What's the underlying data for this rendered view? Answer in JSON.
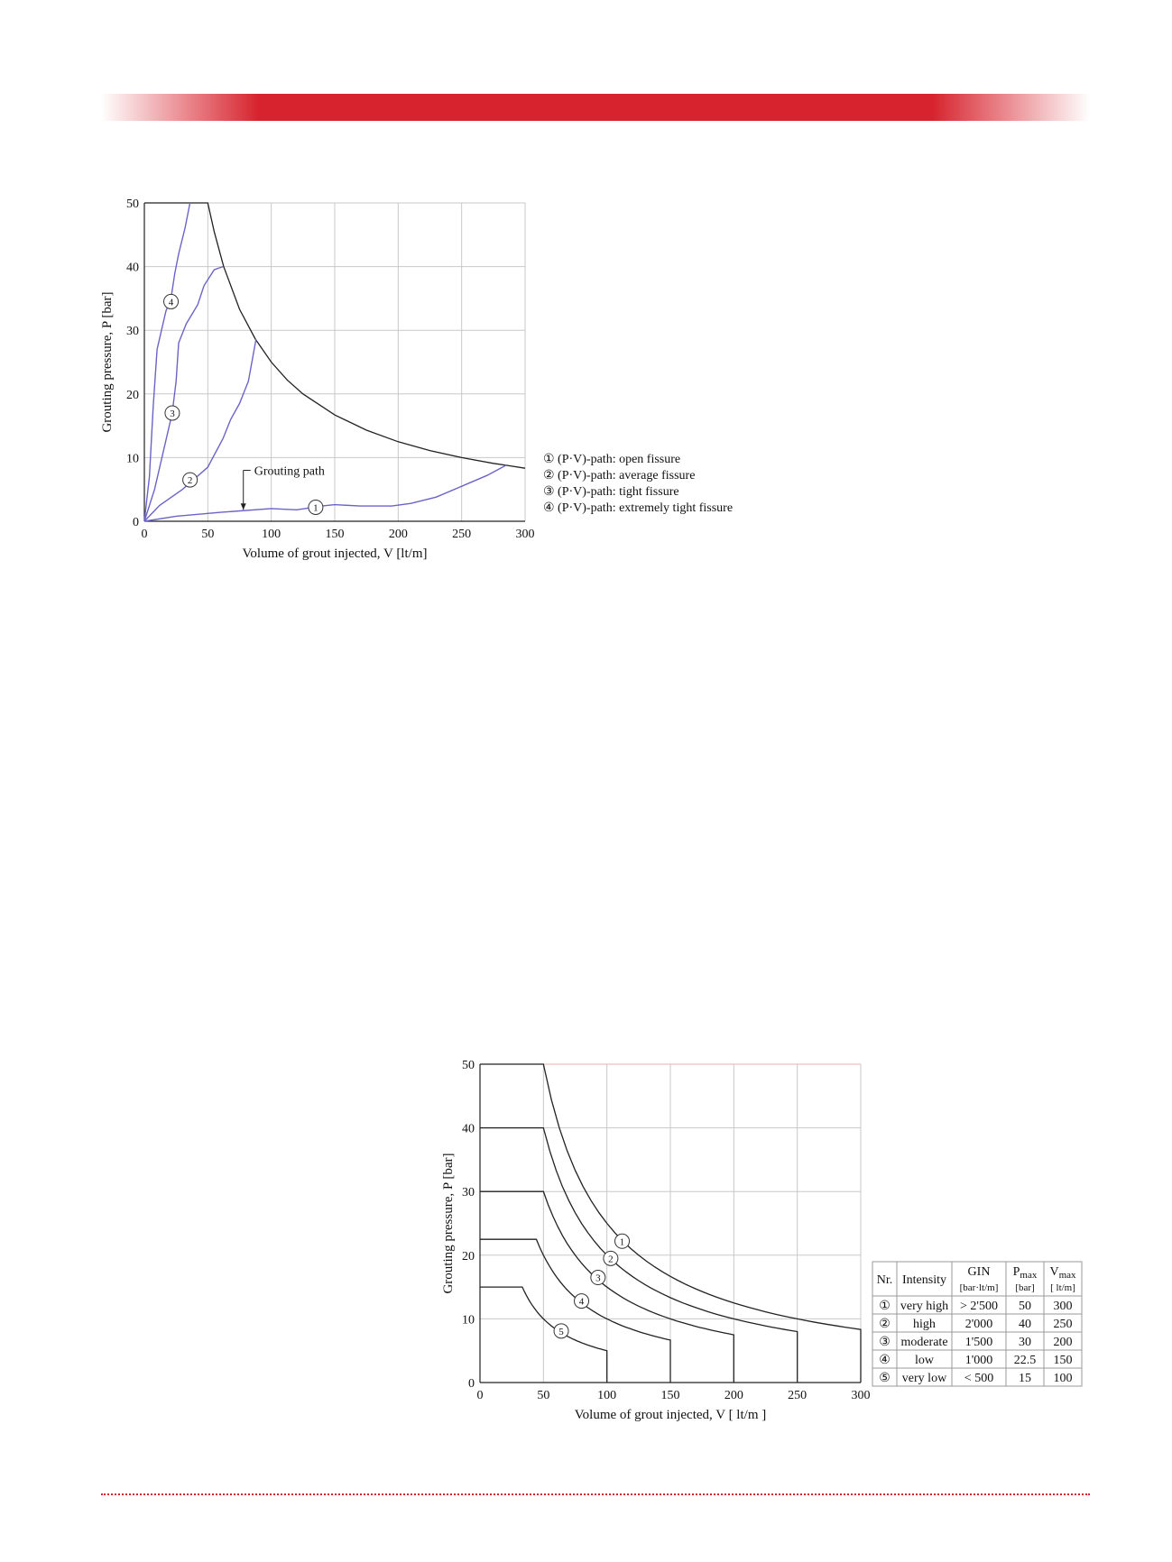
{
  "colors": {
    "accent_bar": "#d7232d",
    "path_curve": "#6b64c8",
    "limit_curve": "#222222",
    "grid": "#c8c8c8",
    "table_grid": "#9a9a9a",
    "top_grid": "#e8b0b0"
  },
  "chart_data": [
    {
      "type": "line",
      "xlabel": "Volume of grout injected, V [lt/m]",
      "ylabel": "Grouting pressure, P [bar]",
      "xlim": [
        0,
        300
      ],
      "ylim": [
        0,
        50
      ],
      "xticks": [
        "0",
        "50",
        "100",
        "150",
        "200",
        "250",
        "300"
      ],
      "yticks": [
        "0",
        "10",
        "20",
        "30",
        "40",
        "50"
      ],
      "grid": true,
      "annotation": "Grouting path",
      "limit_curve": {
        "points": [
          [
            0,
            50
          ],
          [
            50,
            50
          ],
          [
            55,
            45.5
          ],
          [
            62.5,
            40
          ],
          [
            75,
            33.3
          ],
          [
            87.5,
            28.6
          ],
          [
            100,
            25
          ],
          [
            112.5,
            22.2
          ],
          [
            125,
            20
          ],
          [
            150,
            16.7
          ],
          [
            175,
            14.3
          ],
          [
            200,
            12.5
          ],
          [
            225,
            11.1
          ],
          [
            250,
            10
          ],
          [
            275,
            9.1
          ],
          [
            285,
            8.8
          ],
          [
            300,
            8.33
          ]
        ]
      },
      "series": [
        {
          "name": "(P·V)-path: open fissure",
          "marker": "①",
          "marker_at": [
            135,
            2.2
          ],
          "points": [
            [
              0,
              0
            ],
            [
              25,
              0.8
            ],
            [
              60,
              1.4
            ],
            [
              100,
              2.0
            ],
            [
              120,
              1.8
            ],
            [
              140,
              2.4
            ],
            [
              150,
              2.6
            ],
            [
              170,
              2.4
            ],
            [
              195,
              2.4
            ],
            [
              210,
              2.8
            ],
            [
              230,
              3.8
            ],
            [
              250,
              5.5
            ],
            [
              270,
              7.2
            ],
            [
              285,
              8.8
            ]
          ]
        },
        {
          "name": "(P·V)-path: average fissure",
          "marker": "②",
          "marker_at": [
            36,
            6.5
          ],
          "points": [
            [
              0,
              0
            ],
            [
              12,
              2.5
            ],
            [
              30,
              5
            ],
            [
              50,
              8.5
            ],
            [
              62,
              13
            ],
            [
              68,
              16
            ],
            [
              75,
              18.5
            ],
            [
              82,
              22
            ],
            [
              88,
              28.6
            ]
          ]
        },
        {
          "name": "(P·V)-path: tight fissure",
          "marker": "③",
          "marker_at": [
            22,
            17
          ],
          "points": [
            [
              0,
              0
            ],
            [
              8,
              5
            ],
            [
              15,
              11
            ],
            [
              22,
              17
            ],
            [
              25,
              22
            ],
            [
              27,
              28
            ],
            [
              33,
              31
            ],
            [
              42,
              34
            ],
            [
              47,
              37
            ],
            [
              55,
              39.5
            ],
            [
              62,
              40
            ]
          ]
        },
        {
          "name": "(P·V)-path: extremely tight fissure",
          "marker": "④",
          "marker_at": [
            21,
            34.5
          ],
          "points": [
            [
              0,
              0
            ],
            [
              4,
              7
            ],
            [
              7,
              18
            ],
            [
              10,
              27
            ],
            [
              17,
              33
            ],
            [
              21,
              35
            ],
            [
              24,
              39
            ],
            [
              27,
              42
            ],
            [
              32,
              46
            ],
            [
              36,
              50
            ]
          ]
        }
      ]
    },
    {
      "type": "line",
      "xlabel": "Volume of grout injected, V [ lt/m ]",
      "ylabel": "Grouting pressure, P [bar]",
      "xlim": [
        0,
        300
      ],
      "ylim": [
        0,
        50
      ],
      "xticks": [
        "0",
        "50",
        "100",
        "150",
        "200",
        "250",
        "300"
      ],
      "yticks": [
        "0",
        "10",
        "20",
        "30",
        "40",
        "50"
      ],
      "grid": true,
      "series": [
        {
          "marker": "①",
          "pmax": 50,
          "vmax": 300,
          "gin": 2500,
          "marker_at": [
            112,
            22.2
          ]
        },
        {
          "marker": "②",
          "pmax": 40,
          "vmax": 250,
          "gin": 2000,
          "marker_at": [
            103,
            19.5
          ]
        },
        {
          "marker": "③",
          "pmax": 30,
          "vmax": 200,
          "gin": 1500,
          "marker_at": [
            93,
            16.5
          ]
        },
        {
          "marker": "④",
          "pmax": 22.5,
          "vmax": 150,
          "gin": 1000,
          "marker_at": [
            80,
            12.8
          ]
        },
        {
          "marker": "⑤",
          "pmax": 15,
          "vmax": 100,
          "gin": 500,
          "marker_at": [
            64,
            8.1
          ]
        }
      ],
      "table": {
        "headers": [
          "Nr.",
          "Intensity",
          "GIN",
          "P",
          "V"
        ],
        "header_units": [
          "",
          "",
          "[bar·lt/m]",
          "[bar]",
          "[ lt/m]"
        ],
        "header_subscripts": [
          "",
          "",
          "",
          "max",
          "max"
        ],
        "rows": [
          [
            "①",
            "very high",
            "> 2'500",
            "50",
            "300"
          ],
          [
            "②",
            "high",
            "2'000",
            "40",
            "250"
          ],
          [
            "③",
            "moderate",
            "1'500",
            "30",
            "200"
          ],
          [
            "④",
            "low",
            "1'000",
            "22.5",
            "150"
          ],
          [
            "⑤",
            "very low",
            "< 500",
            "15",
            "100"
          ]
        ]
      }
    }
  ]
}
